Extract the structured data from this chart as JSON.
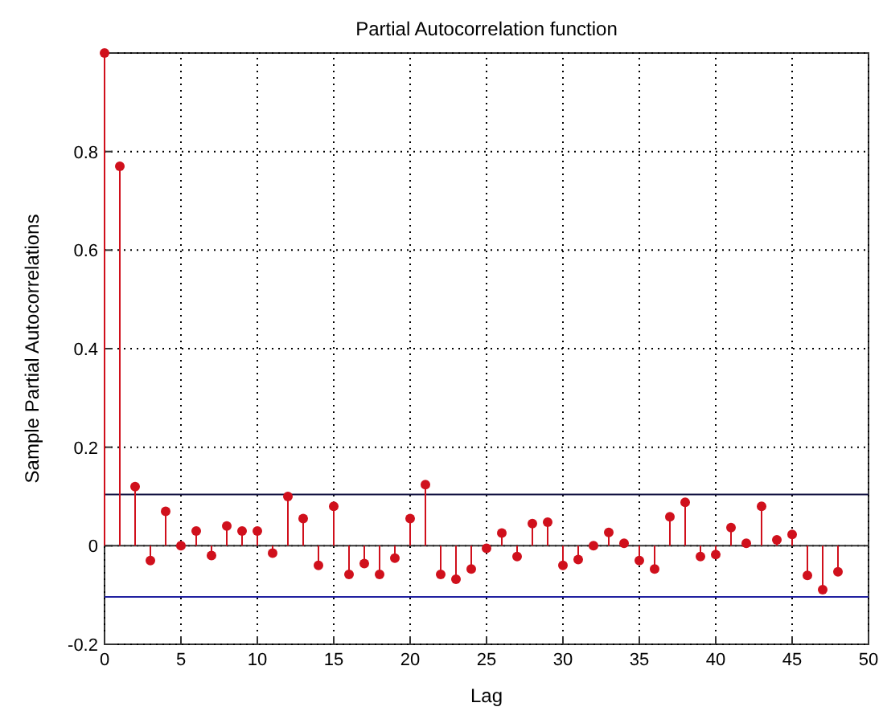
{
  "chart_data": {
    "type": "lollipop",
    "title": "Partial Autocorrelation function",
    "xlabel": "Lag",
    "ylabel": "Sample Partial Autocorrelations",
    "x": [
      0,
      1,
      2,
      3,
      4,
      5,
      6,
      7,
      8,
      9,
      10,
      11,
      12,
      13,
      14,
      15,
      16,
      17,
      18,
      19,
      20,
      21,
      22,
      23,
      24,
      25,
      26,
      27,
      28,
      29,
      30,
      31,
      32,
      33,
      34,
      35,
      36,
      37,
      38,
      39,
      40,
      41,
      42,
      43,
      44,
      45,
      46,
      47,
      48
    ],
    "series": [
      {
        "color": "#d0101c",
        "values": [
          1,
          0.77,
          0.12,
          -0.03,
          0.07,
          0,
          0.03,
          -0.02,
          0.04,
          0.03,
          0.03,
          -0.015,
          0.1,
          0.055,
          -0.04,
          0.08,
          -0.058,
          -0.036,
          -0.058,
          -0.025,
          0.055,
          0.124,
          -0.058,
          -0.068,
          -0.047,
          -0.005,
          0.026,
          -0.022,
          0.045,
          0.048,
          -0.04,
          -0.028,
          0,
          0.027,
          0.005,
          -0.03,
          -0.047,
          0.059,
          0.088,
          -0.022,
          -0.018,
          0.037,
          0.005,
          0.08,
          0.012,
          0.023,
          -0.06,
          -0.089,
          -0.053
        ]
      }
    ],
    "xlim": [
      0,
      50
    ],
    "xticks": [
      0,
      5,
      10,
      15,
      20,
      25,
      30,
      35,
      40,
      45,
      50
    ],
    "ylim": [
      -0.2,
      1
    ],
    "yticks": [
      -0.2,
      0,
      0.2,
      0.4,
      0.6,
      0.8,
      {
        "value": 1,
        "label": null
      }
    ],
    "ref_lines": [
      {
        "axis": "y",
        "value": 0.104,
        "color": "#101040"
      },
      {
        "axis": "y",
        "value": -0.104,
        "color": "#2020a0"
      }
    ],
    "grid": true,
    "marker": "circle"
  }
}
